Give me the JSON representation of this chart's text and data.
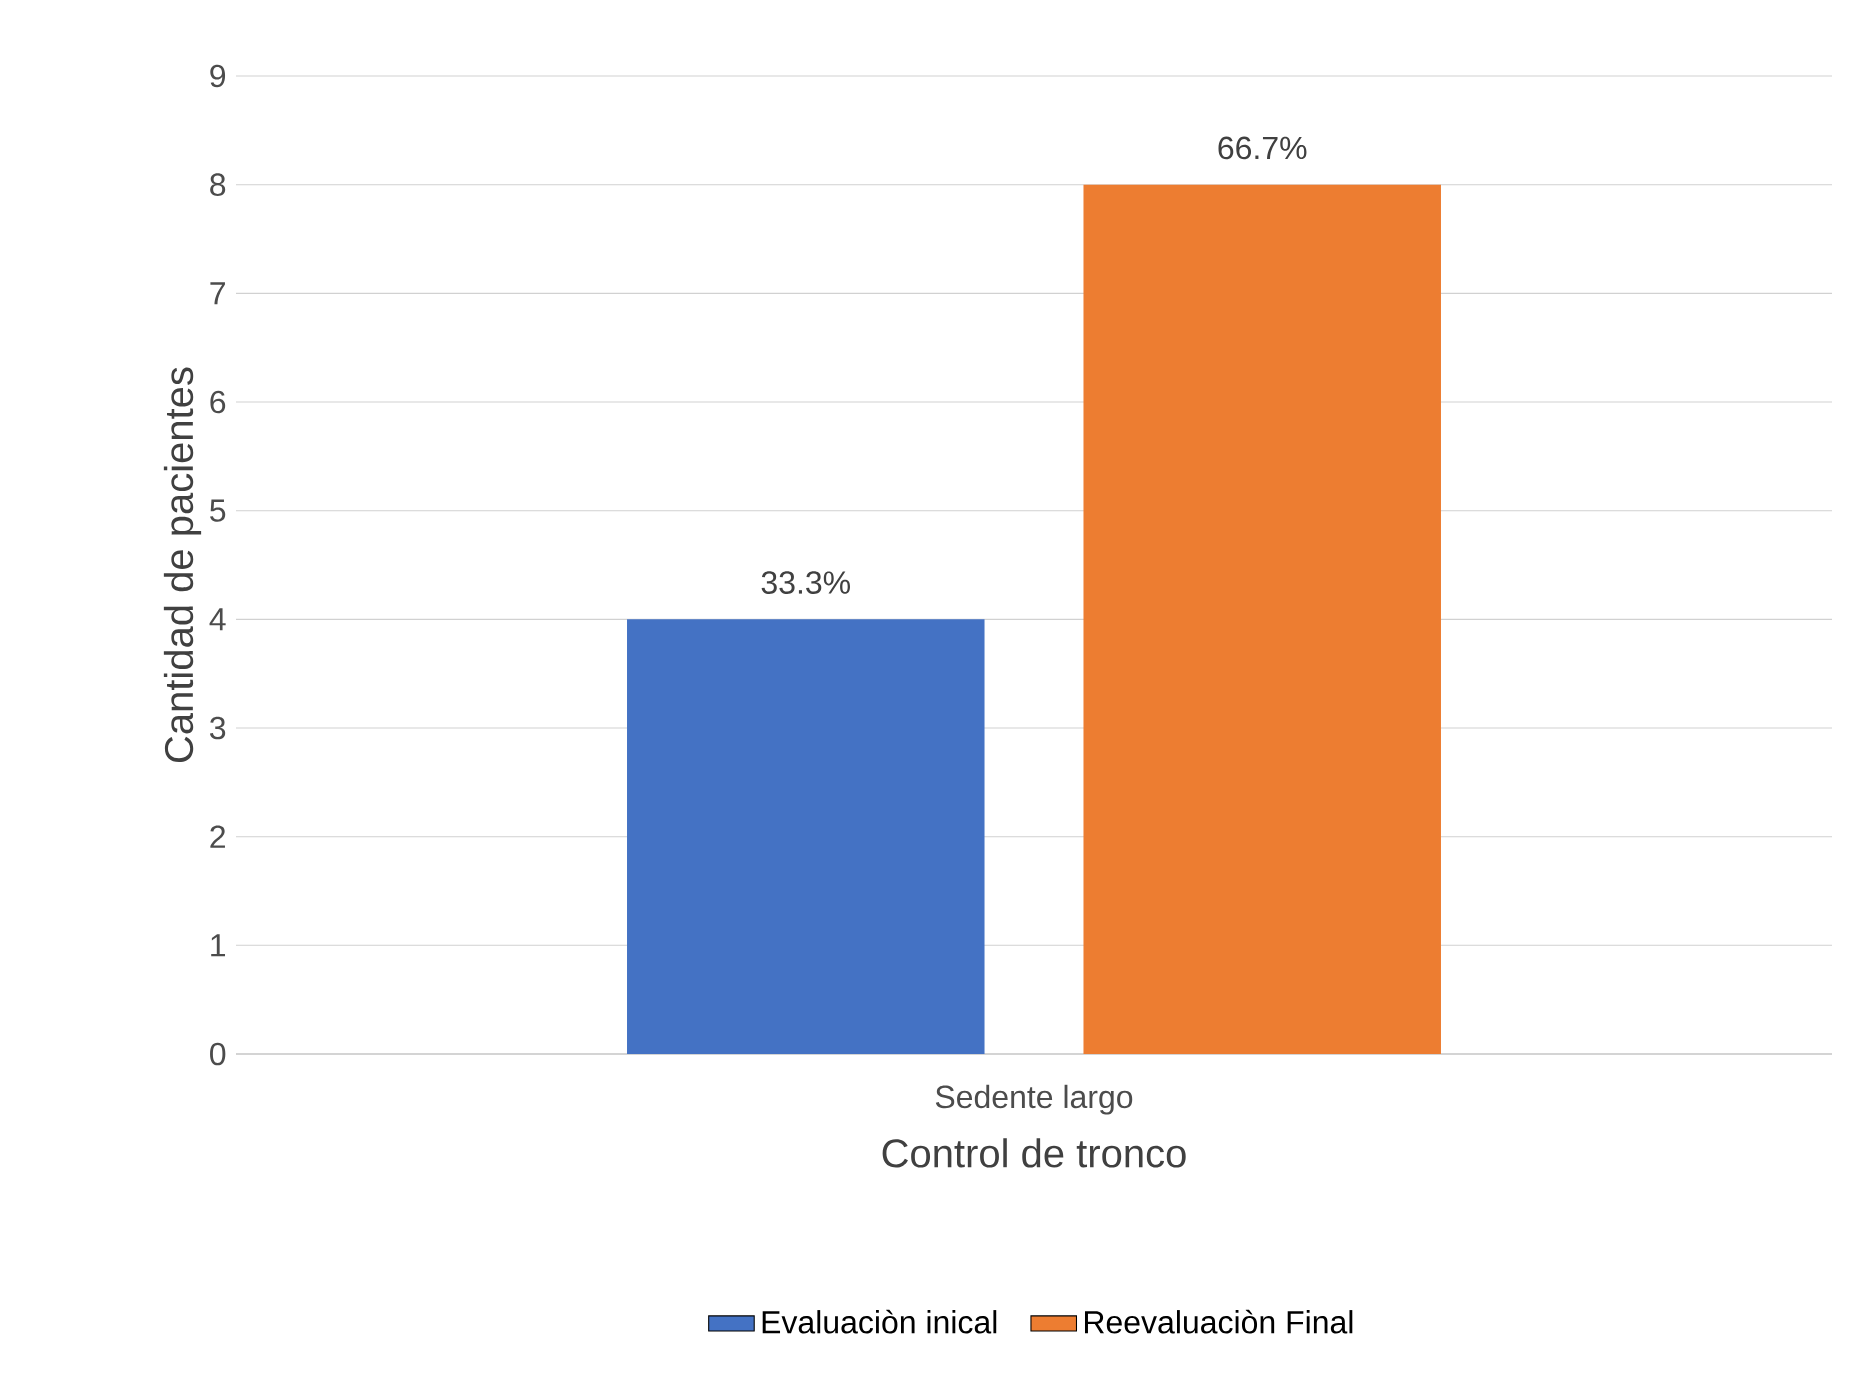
{
  "chart_data": {
    "type": "bar",
    "xlabel": "Control de tronco",
    "ylabel": "Cantidad de pacientes",
    "categories": [
      "Sedente largo"
    ],
    "series": [
      {
        "name": "Evaluaciòn inical",
        "color": "#4472c4",
        "values": [
          4
        ]
      },
      {
        "name": "Reevaluaciòn Final",
        "color": "#ed7d31",
        "values": [
          8
        ]
      }
    ],
    "annotations": [
      "33.3%",
      "66.7%"
    ],
    "ylim": [
      0,
      9
    ],
    "yticks": [
      0,
      1,
      2,
      3,
      4,
      5,
      6,
      7,
      8,
      9
    ],
    "grid": "y",
    "legend": "bottom"
  }
}
